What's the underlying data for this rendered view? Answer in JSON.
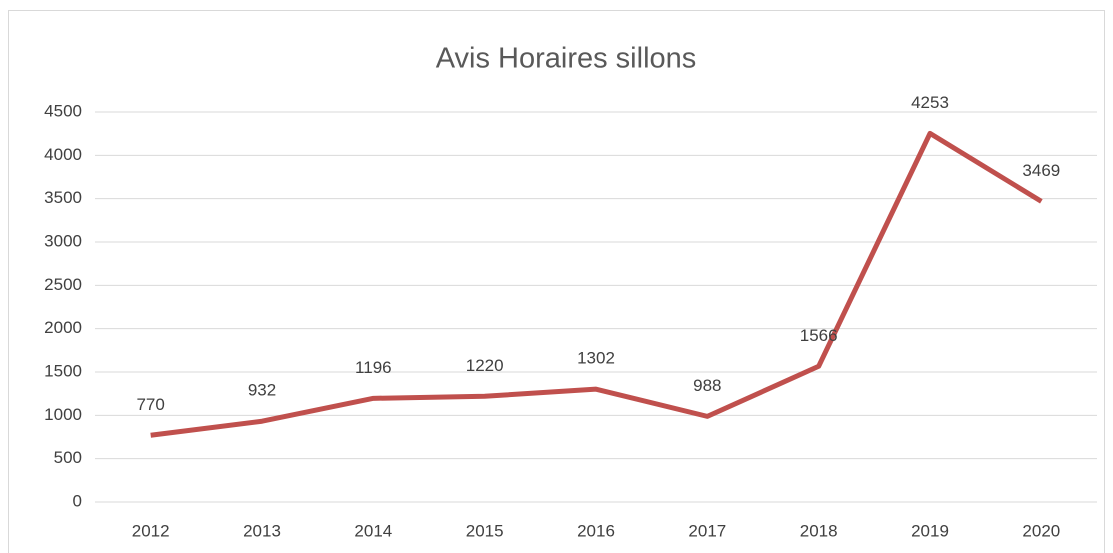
{
  "chart_data": {
    "type": "line",
    "title": "Avis Horaires sillons",
    "categories": [
      "2012",
      "2013",
      "2014",
      "2015",
      "2016",
      "2017",
      "2018",
      "2019",
      "2020"
    ],
    "series": [
      {
        "name": "Avis Horaires sillons",
        "color": "#c0504d",
        "values": [
          770,
          932,
          1196,
          1220,
          1302,
          988,
          1566,
          4253,
          3469
        ]
      }
    ],
    "ylim": [
      0,
      4500
    ],
    "yticks": [
      0,
      500,
      1000,
      1500,
      2000,
      2500,
      3000,
      3500,
      4000,
      4500
    ],
    "grid": true
  }
}
